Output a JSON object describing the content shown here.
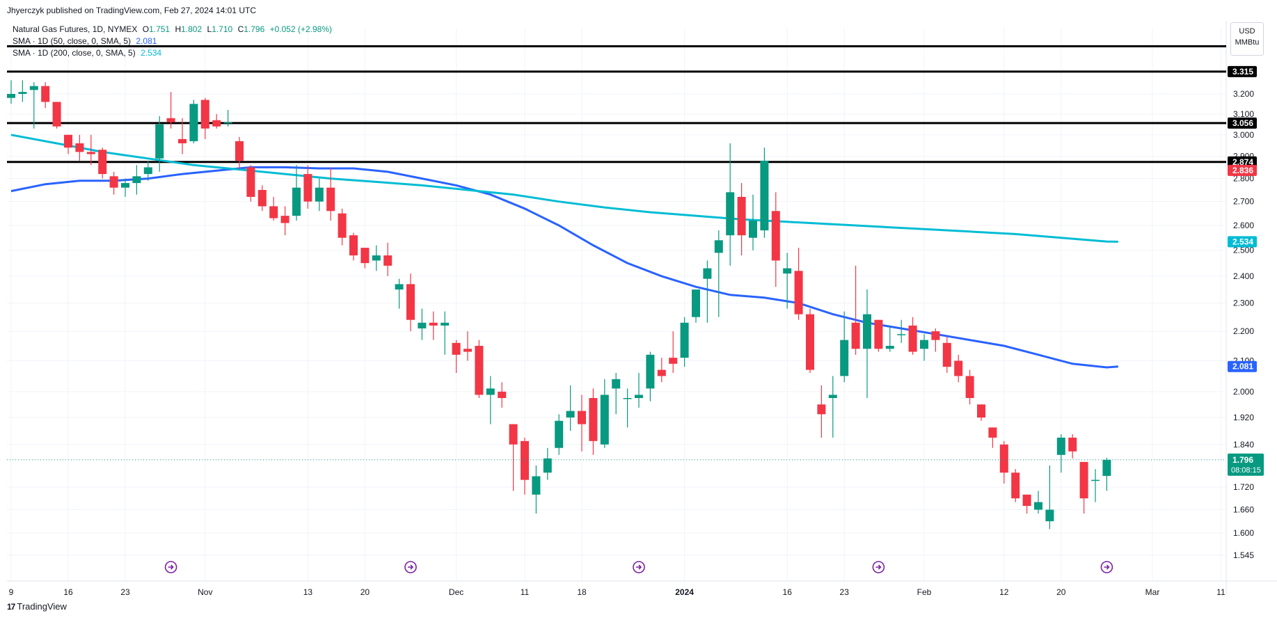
{
  "header": {
    "published": "Jhyerczyk published on TradingView.com, Feb 27, 2024 14:01 UTC",
    "symbol": "Natural Gas Futures, 1D, NYMEX",
    "ohlc": {
      "o_label": "O",
      "o": "1.751",
      "h_label": "H",
      "h": "1.802",
      "l_label": "L",
      "l": "1.710",
      "c_label": "C",
      "c": "1.796",
      "change": "+0.052 (+2.98%)"
    },
    "sma50_label": "SMA · 1D (50, close, 0, SMA, 5)",
    "sma50_value": "2.081",
    "sma200_label": "SMA · 1D (200, close, 0, SMA, 5)",
    "sma200_value": "2.534"
  },
  "currency": {
    "code": "USD",
    "unit": "MMBtu"
  },
  "footer": {
    "brand": "TradingView",
    "mark": "17"
  },
  "colors": {
    "up": "#089981",
    "down": "#f23645",
    "sma50": "#2962ff",
    "sma200": "#00bcd4",
    "hline": "#000000",
    "grid": "#f0f3fa",
    "current": "#089981"
  },
  "chart_data": {
    "type": "candlestick",
    "y_axis": {
      "ticks": [
        "3.200",
        "3.100",
        "3.000",
        "2.900",
        "2.800",
        "2.700",
        "2.600",
        "2.500",
        "2.400",
        "2.300",
        "2.200",
        "2.100",
        "2.000",
        "1.920",
        "1.840",
        "1.720",
        "1.660",
        "1.600",
        "1.545"
      ],
      "scale": "log",
      "range": [
        1.52,
        3.42
      ]
    },
    "x_axis": {
      "ticks": [
        {
          "label": "9",
          "index": 0,
          "bold": false
        },
        {
          "label": "16",
          "index": 5,
          "bold": false
        },
        {
          "label": "23",
          "index": 10,
          "bold": false
        },
        {
          "label": "Nov",
          "index": 17,
          "bold": false
        },
        {
          "label": "13",
          "index": 26,
          "bold": false
        },
        {
          "label": "20",
          "index": 31,
          "bold": false
        },
        {
          "label": "Dec",
          "index": 39,
          "bold": false
        },
        {
          "label": "11",
          "index": 45,
          "bold": false
        },
        {
          "label": "18",
          "index": 50,
          "bold": false
        },
        {
          "label": "2024",
          "index": 59,
          "bold": true
        },
        {
          "label": "16",
          "index": 68,
          "bold": false
        },
        {
          "label": "23",
          "index": 73,
          "bold": false
        },
        {
          "label": "Feb",
          "index": 80,
          "bold": false
        },
        {
          "label": "12",
          "index": 87,
          "bold": false
        },
        {
          "label": "20",
          "index": 92,
          "bold": false
        },
        {
          "label": "Mar",
          "index": 100,
          "bold": false
        },
        {
          "label": "11",
          "index": 106,
          "bold": false
        }
      ]
    },
    "horizontal_lines": [
      {
        "value": 3.45,
        "label": ""
      },
      {
        "value": 3.315,
        "label": "3.315"
      },
      {
        "value": 3.056,
        "label": "3.056"
      },
      {
        "value": 2.874,
        "label": "2.874"
      }
    ],
    "price_labels": [
      {
        "value": 2.836,
        "label": "2.836",
        "color": "#f23645"
      },
      {
        "value": 2.534,
        "label": "2.534",
        "color": "#00bcd4"
      },
      {
        "value": 2.081,
        "label": "2.081",
        "color": "#2962ff"
      }
    ],
    "current_price": {
      "value": 1.796,
      "label": "1.796",
      "countdown": "08:08:15"
    },
    "event_markers": [
      14,
      35,
      55,
      76,
      96
    ],
    "candles": [
      {
        "o": 3.18,
        "h": 3.27,
        "l": 3.15,
        "c": 3.2
      },
      {
        "o": 3.2,
        "h": 3.27,
        "l": 3.16,
        "c": 3.21
      },
      {
        "o": 3.22,
        "h": 3.26,
        "l": 3.03,
        "c": 3.24
      },
      {
        "o": 3.24,
        "h": 3.26,
        "l": 3.13,
        "c": 3.16
      },
      {
        "o": 3.16,
        "h": 3.16,
        "l": 3.03,
        "c": 3.04
      },
      {
        "o": 3.0,
        "h": 3.0,
        "l": 2.91,
        "c": 2.94
      },
      {
        "o": 2.96,
        "h": 3.0,
        "l": 2.88,
        "c": 2.92
      },
      {
        "o": 2.92,
        "h": 3.0,
        "l": 2.86,
        "c": 2.91
      },
      {
        "o": 2.93,
        "h": 2.94,
        "l": 2.8,
        "c": 2.82
      },
      {
        "o": 2.81,
        "h": 2.83,
        "l": 2.73,
        "c": 2.76
      },
      {
        "o": 2.76,
        "h": 2.8,
        "l": 2.72,
        "c": 2.78
      },
      {
        "o": 2.78,
        "h": 2.86,
        "l": 2.73,
        "c": 2.81
      },
      {
        "o": 2.82,
        "h": 2.88,
        "l": 2.79,
        "c": 2.85
      },
      {
        "o": 2.89,
        "h": 3.09,
        "l": 2.83,
        "c": 3.05
      },
      {
        "o": 3.08,
        "h": 3.21,
        "l": 3.03,
        "c": 3.06
      },
      {
        "o": 2.98,
        "h": 3.08,
        "l": 2.91,
        "c": 2.96
      },
      {
        "o": 2.97,
        "h": 3.17,
        "l": 2.96,
        "c": 3.15
      },
      {
        "o": 3.17,
        "h": 3.18,
        "l": 2.98,
        "c": 3.03
      },
      {
        "o": 3.07,
        "h": 3.1,
        "l": 3.03,
        "c": 3.04
      },
      {
        "o": 3.06,
        "h": 3.12,
        "l": 3.04,
        "c": 3.06
      },
      {
        "o": 2.97,
        "h": 2.99,
        "l": 2.84,
        "c": 2.88
      },
      {
        "o": 2.85,
        "h": 2.86,
        "l": 2.7,
        "c": 2.72
      },
      {
        "o": 2.75,
        "h": 2.77,
        "l": 2.66,
        "c": 2.68
      },
      {
        "o": 2.68,
        "h": 2.72,
        "l": 2.62,
        "c": 2.63
      },
      {
        "o": 2.64,
        "h": 2.68,
        "l": 2.56,
        "c": 2.61
      },
      {
        "o": 2.64,
        "h": 2.86,
        "l": 2.62,
        "c": 2.76
      },
      {
        "o": 2.82,
        "h": 2.86,
        "l": 2.67,
        "c": 2.7
      },
      {
        "o": 2.7,
        "h": 2.8,
        "l": 2.66,
        "c": 2.76
      },
      {
        "o": 2.76,
        "h": 2.85,
        "l": 2.62,
        "c": 2.66
      },
      {
        "o": 2.65,
        "h": 2.67,
        "l": 2.52,
        "c": 2.55
      },
      {
        "o": 2.56,
        "h": 2.57,
        "l": 2.46,
        "c": 2.48
      },
      {
        "o": 2.51,
        "h": 2.51,
        "l": 2.43,
        "c": 2.45
      },
      {
        "o": 2.46,
        "h": 2.52,
        "l": 2.42,
        "c": 2.48
      },
      {
        "o": 2.48,
        "h": 2.53,
        "l": 2.4,
        "c": 2.44
      },
      {
        "o": 2.35,
        "h": 2.39,
        "l": 2.28,
        "c": 2.37
      },
      {
        "o": 2.37,
        "h": 2.41,
        "l": 2.2,
        "c": 2.24
      },
      {
        "o": 2.21,
        "h": 2.28,
        "l": 2.17,
        "c": 2.23
      },
      {
        "o": 2.23,
        "h": 2.27,
        "l": 2.17,
        "c": 2.22
      },
      {
        "o": 2.22,
        "h": 2.27,
        "l": 2.12,
        "c": 2.23
      },
      {
        "o": 2.16,
        "h": 2.17,
        "l": 2.06,
        "c": 2.12
      },
      {
        "o": 2.14,
        "h": 2.2,
        "l": 2.1,
        "c": 2.13
      },
      {
        "o": 2.15,
        "h": 2.17,
        "l": 1.98,
        "c": 1.99
      },
      {
        "o": 1.99,
        "h": 2.05,
        "l": 1.9,
        "c": 2.01
      },
      {
        "o": 2.0,
        "h": 2.03,
        "l": 1.95,
        "c": 1.98
      },
      {
        "o": 1.9,
        "h": 1.9,
        "l": 1.71,
        "c": 1.84
      },
      {
        "o": 1.85,
        "h": 1.86,
        "l": 1.7,
        "c": 1.74
      },
      {
        "o": 1.7,
        "h": 1.78,
        "l": 1.65,
        "c": 1.75
      },
      {
        "o": 1.76,
        "h": 1.83,
        "l": 1.74,
        "c": 1.8
      },
      {
        "o": 1.83,
        "h": 1.93,
        "l": 1.81,
        "c": 1.91
      },
      {
        "o": 1.92,
        "h": 2.02,
        "l": 1.88,
        "c": 1.94
      },
      {
        "o": 1.94,
        "h": 1.99,
        "l": 1.82,
        "c": 1.9
      },
      {
        "o": 1.98,
        "h": 2.01,
        "l": 1.81,
        "c": 1.85
      },
      {
        "o": 1.84,
        "h": 2.04,
        "l": 1.83,
        "c": 1.99
      },
      {
        "o": 2.01,
        "h": 2.06,
        "l": 1.93,
        "c": 2.04
      },
      {
        "o": 1.98,
        "h": 2.01,
        "l": 1.89,
        "c": 1.98
      },
      {
        "o": 1.98,
        "h": 2.06,
        "l": 1.95,
        "c": 1.99
      },
      {
        "o": 2.01,
        "h": 2.13,
        "l": 1.97,
        "c": 2.12
      },
      {
        "o": 2.07,
        "h": 2.11,
        "l": 2.03,
        "c": 2.05
      },
      {
        "o": 2.11,
        "h": 2.2,
        "l": 2.06,
        "c": 2.09
      },
      {
        "o": 2.11,
        "h": 2.25,
        "l": 2.08,
        "c": 2.23
      },
      {
        "o": 2.25,
        "h": 2.35,
        "l": 2.23,
        "c": 2.35
      },
      {
        "o": 2.39,
        "h": 2.46,
        "l": 2.23,
        "c": 2.43
      },
      {
        "o": 2.49,
        "h": 2.58,
        "l": 2.25,
        "c": 2.54
      },
      {
        "o": 2.56,
        "h": 2.96,
        "l": 2.44,
        "c": 2.74
      },
      {
        "o": 2.72,
        "h": 2.78,
        "l": 2.48,
        "c": 2.56
      },
      {
        "o": 2.55,
        "h": 2.73,
        "l": 2.5,
        "c": 2.62
      },
      {
        "o": 2.58,
        "h": 2.94,
        "l": 2.55,
        "c": 2.88
      },
      {
        "o": 2.66,
        "h": 2.74,
        "l": 2.36,
        "c": 2.46
      },
      {
        "o": 2.41,
        "h": 2.49,
        "l": 2.28,
        "c": 2.43
      },
      {
        "o": 2.42,
        "h": 2.51,
        "l": 2.24,
        "c": 2.26
      },
      {
        "o": 2.26,
        "h": 2.28,
        "l": 2.06,
        "c": 2.07
      },
      {
        "o": 1.96,
        "h": 2.02,
        "l": 1.86,
        "c": 1.93
      },
      {
        "o": 1.98,
        "h": 2.05,
        "l": 1.86,
        "c": 1.99
      },
      {
        "o": 2.05,
        "h": 2.27,
        "l": 2.03,
        "c": 2.17
      },
      {
        "o": 2.23,
        "h": 2.44,
        "l": 2.12,
        "c": 2.14
      },
      {
        "o": 2.14,
        "h": 2.35,
        "l": 1.98,
        "c": 2.26
      },
      {
        "o": 2.24,
        "h": 2.24,
        "l": 2.13,
        "c": 2.14
      },
      {
        "o": 2.14,
        "h": 2.22,
        "l": 2.13,
        "c": 2.15
      },
      {
        "o": 2.19,
        "h": 2.24,
        "l": 2.16,
        "c": 2.19
      },
      {
        "o": 2.22,
        "h": 2.25,
        "l": 2.12,
        "c": 2.13
      },
      {
        "o": 2.14,
        "h": 2.19,
        "l": 2.1,
        "c": 2.17
      },
      {
        "o": 2.2,
        "h": 2.21,
        "l": 2.13,
        "c": 2.17
      },
      {
        "o": 2.16,
        "h": 2.18,
        "l": 2.06,
        "c": 2.08
      },
      {
        "o": 2.1,
        "h": 2.12,
        "l": 2.03,
        "c": 2.05
      },
      {
        "o": 2.05,
        "h": 2.07,
        "l": 1.96,
        "c": 1.98
      },
      {
        "o": 1.96,
        "h": 1.96,
        "l": 1.91,
        "c": 1.92
      },
      {
        "o": 1.89,
        "h": 1.89,
        "l": 1.83,
        "c": 1.86
      },
      {
        "o": 1.84,
        "h": 1.85,
        "l": 1.73,
        "c": 1.76
      },
      {
        "o": 1.76,
        "h": 1.77,
        "l": 1.68,
        "c": 1.69
      },
      {
        "o": 1.7,
        "h": 1.7,
        "l": 1.65,
        "c": 1.67
      },
      {
        "o": 1.66,
        "h": 1.71,
        "l": 1.65,
        "c": 1.68
      },
      {
        "o": 1.63,
        "h": 1.78,
        "l": 1.61,
        "c": 1.66
      },
      {
        "o": 1.81,
        "h": 1.87,
        "l": 1.76,
        "c": 1.86
      },
      {
        "o": 1.86,
        "h": 1.87,
        "l": 1.8,
        "c": 1.82
      },
      {
        "o": 1.79,
        "h": 1.79,
        "l": 1.65,
        "c": 1.69
      },
      {
        "o": 1.74,
        "h": 1.77,
        "l": 1.68,
        "c": 1.74
      },
      {
        "o": 1.751,
        "h": 1.802,
        "l": 1.71,
        "c": 1.796
      }
    ],
    "series": [
      {
        "name": "SMA 50",
        "color": "#2962ff",
        "points": [
          [
            0,
            2.745
          ],
          [
            3,
            2.775
          ],
          [
            6,
            2.79
          ],
          [
            9,
            2.79
          ],
          [
            12,
            2.8
          ],
          [
            15,
            2.82
          ],
          [
            18,
            2.835
          ],
          [
            21,
            2.85
          ],
          [
            24,
            2.85
          ],
          [
            27,
            2.845
          ],
          [
            30,
            2.845
          ],
          [
            33,
            2.83
          ],
          [
            36,
            2.8
          ],
          [
            39,
            2.77
          ],
          [
            42,
            2.73
          ],
          [
            45,
            2.67
          ],
          [
            48,
            2.6
          ],
          [
            51,
            2.52
          ],
          [
            54,
            2.45
          ],
          [
            57,
            2.4
          ],
          [
            60,
            2.36
          ],
          [
            63,
            2.33
          ],
          [
            66,
            2.32
          ],
          [
            69,
            2.3
          ],
          [
            72,
            2.26
          ],
          [
            75,
            2.23
          ],
          [
            78,
            2.21
          ],
          [
            81,
            2.19
          ],
          [
            84,
            2.17
          ],
          [
            87,
            2.15
          ],
          [
            90,
            2.12
          ],
          [
            93,
            2.09
          ],
          [
            96,
            2.078
          ],
          [
            97,
            2.081
          ]
        ]
      },
      {
        "name": "SMA 200",
        "color": "#00bcd4",
        "points": [
          [
            0,
            3.0
          ],
          [
            4,
            2.96
          ],
          [
            8,
            2.92
          ],
          [
            12,
            2.89
          ],
          [
            16,
            2.86
          ],
          [
            20,
            2.84
          ],
          [
            24,
            2.82
          ],
          [
            28,
            2.8
          ],
          [
            32,
            2.785
          ],
          [
            36,
            2.77
          ],
          [
            40,
            2.75
          ],
          [
            44,
            2.73
          ],
          [
            48,
            2.7
          ],
          [
            52,
            2.675
          ],
          [
            56,
            2.655
          ],
          [
            60,
            2.64
          ],
          [
            64,
            2.625
          ],
          [
            68,
            2.615
          ],
          [
            72,
            2.605
          ],
          [
            76,
            2.595
          ],
          [
            80,
            2.585
          ],
          [
            84,
            2.575
          ],
          [
            88,
            2.565
          ],
          [
            92,
            2.55
          ],
          [
            96,
            2.535
          ],
          [
            97,
            2.534
          ]
        ]
      }
    ]
  }
}
